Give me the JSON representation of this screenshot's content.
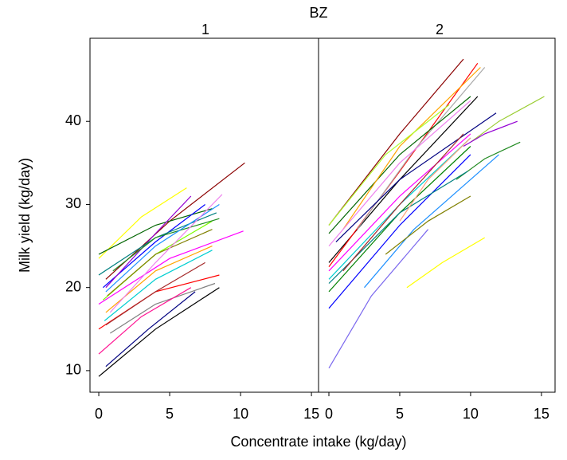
{
  "chart_data": [
    {
      "type": "line",
      "suptitle": "BZ",
      "title": "1",
      "xlabel": "Concentrate intake (kg/day)",
      "ylabel": "Milk yield (kg/day)",
      "xlim": [
        -0.62,
        15.5
      ],
      "ylim": [
        7.4,
        50
      ],
      "xticks": [
        0,
        5,
        10,
        15
      ],
      "yticks": [
        10,
        20,
        30,
        40
      ],
      "series": [
        {
          "color": "#ffff00",
          "x": [
            0,
            3,
            6.2
          ],
          "values": [
            23.5,
            28.5,
            32
          ]
        },
        {
          "color": "#8b0000",
          "x": [
            0.5,
            5,
            10.3
          ],
          "values": [
            21,
            28,
            35
          ]
        },
        {
          "color": "#ff00ff",
          "x": [
            0,
            5,
            10.2
          ],
          "values": [
            18,
            23.5,
            26.8
          ]
        },
        {
          "color": "#006400",
          "x": [
            0,
            4,
            8
          ],
          "values": [
            24,
            27.5,
            29.5
          ]
        },
        {
          "color": "#0000ff",
          "x": [
            0.3,
            4,
            7.5
          ],
          "values": [
            20,
            25.5,
            30
          ]
        },
        {
          "color": "#000000",
          "x": [
            0,
            4,
            8.5
          ],
          "values": [
            9.3,
            15,
            20
          ]
        },
        {
          "color": "#000080",
          "x": [
            0.5,
            3.5,
            6.8
          ],
          "values": [
            10.5,
            15,
            19.5
          ]
        },
        {
          "color": "#ff0000",
          "x": [
            0,
            4,
            8.5
          ],
          "values": [
            15,
            19.5,
            21.5
          ]
        },
        {
          "color": "#00ced1",
          "x": [
            0.4,
            4,
            8
          ],
          "values": [
            16,
            21,
            24.5
          ]
        },
        {
          "color": "#9400d3",
          "x": [
            0.5,
            4,
            6.5
          ],
          "values": [
            20,
            26.5,
            31
          ]
        },
        {
          "color": "#808080",
          "x": [
            0.8,
            4,
            8.2
          ],
          "values": [
            14.5,
            18,
            20.5
          ]
        },
        {
          "color": "#7cfc00",
          "x": [
            0.3,
            4,
            8
          ],
          "values": [
            18.5,
            24,
            28
          ]
        },
        {
          "color": "#ffa500",
          "x": [
            0.5,
            4,
            8
          ],
          "values": [
            17,
            22,
            25
          ]
        },
        {
          "color": "#008080",
          "x": [
            0,
            4,
            8.3
          ],
          "values": [
            21.5,
            26,
            29
          ]
        },
        {
          "color": "#ff1493",
          "x": [
            0,
            3,
            6.5
          ],
          "values": [
            12,
            16.5,
            20
          ]
        },
        {
          "color": "#808000",
          "x": [
            0.6,
            4,
            8
          ],
          "values": [
            19,
            24,
            27
          ]
        },
        {
          "color": "#a52a2a",
          "x": [
            0.5,
            4,
            7.5
          ],
          "values": [
            15.5,
            19.5,
            23
          ]
        },
        {
          "color": "#228b22",
          "x": [
            1,
            4,
            8.5
          ],
          "values": [
            22,
            26,
            28.3
          ]
        },
        {
          "color": "#1e90ff",
          "x": [
            0.5,
            4,
            8.5
          ],
          "values": [
            19.5,
            25,
            30
          ]
        },
        {
          "color": "#ee82ee",
          "x": [
            0.8,
            4,
            8.7
          ],
          "values": [
            17,
            23,
            31.2
          ]
        }
      ]
    },
    {
      "type": "line",
      "title": "2",
      "xlim": [
        -0.73,
        15.96
      ],
      "ylim": [
        7.4,
        50
      ],
      "xticks": [
        0,
        5,
        10,
        15
      ],
      "series": [
        {
          "color": "#7b68ee",
          "x": [
            0,
            3,
            7
          ],
          "values": [
            10.3,
            19,
            27
          ]
        },
        {
          "color": "#ffff00",
          "x": [
            5.5,
            8,
            11
          ],
          "values": [
            20,
            23,
            26
          ]
        },
        {
          "color": "#8b0000",
          "x": [
            0,
            5,
            9.5
          ],
          "values": [
            27.5,
            38.5,
            47.5
          ]
        },
        {
          "color": "#000000",
          "x": [
            0,
            5,
            10.5
          ],
          "values": [
            23,
            33,
            43
          ]
        },
        {
          "color": "#9acd32",
          "x": [
            10,
            12,
            15.2
          ],
          "values": [
            37.5,
            40,
            43
          ]
        },
        {
          "color": "#9400d3",
          "x": [
            9.5,
            11,
            13.3
          ],
          "values": [
            37,
            38.5,
            40
          ]
        },
        {
          "color": "#228b22",
          "x": [
            9,
            11,
            13.5
          ],
          "values": [
            33,
            35.5,
            37.5
          ]
        },
        {
          "color": "#0000ff",
          "x": [
            0,
            5,
            10
          ],
          "values": [
            17.5,
            27.5,
            36
          ]
        },
        {
          "color": "#ff0000",
          "x": [
            0,
            5,
            10.5
          ],
          "values": [
            22.5,
            34,
            47
          ]
        },
        {
          "color": "#a9a9a9",
          "x": [
            2,
            6,
            11
          ],
          "values": [
            27,
            36.5,
            46.5
          ]
        },
        {
          "color": "#000080",
          "x": [
            0.5,
            5,
            11.8
          ],
          "values": [
            25.5,
            33,
            41
          ]
        },
        {
          "color": "#008000",
          "x": [
            0,
            5,
            10
          ],
          "values": [
            19.5,
            29,
            37
          ]
        },
        {
          "color": "#00ced1",
          "x": [
            0,
            5,
            10
          ],
          "values": [
            21,
            30,
            38
          ]
        },
        {
          "color": "#006400",
          "x": [
            0,
            5,
            10
          ],
          "values": [
            26.5,
            36,
            43
          ]
        },
        {
          "color": "#ffa500",
          "x": [
            1,
            5,
            10.7
          ],
          "values": [
            27,
            37,
            46.5
          ]
        },
        {
          "color": "#ff00ff",
          "x": [
            0,
            5,
            10
          ],
          "values": [
            22,
            31,
            38.5
          ]
        },
        {
          "color": "#1e90ff",
          "x": [
            2.5,
            6,
            12
          ],
          "values": [
            20,
            27,
            36
          ]
        },
        {
          "color": "#008080",
          "x": [
            0,
            5,
            9.8
          ],
          "values": [
            20.5,
            29,
            34
          ]
        },
        {
          "color": "#adff2f",
          "x": [
            0,
            4,
            8.5
          ],
          "values": [
            27.5,
            36,
            42
          ]
        },
        {
          "color": "#808000",
          "x": [
            4,
            7,
            10
          ],
          "values": [
            24,
            28,
            31
          ]
        },
        {
          "color": "#a52a2a",
          "x": [
            1,
            5,
            9.5
          ],
          "values": [
            22,
            30,
            38.5
          ]
        },
        {
          "color": "#ee82ee",
          "x": [
            0,
            5,
            10
          ],
          "values": [
            25,
            35,
            42.5
          ]
        },
        {
          "color": "#ffa07a",
          "x": [
            5,
            7,
            10
          ],
          "values": [
            28,
            33,
            38
          ]
        }
      ]
    }
  ]
}
